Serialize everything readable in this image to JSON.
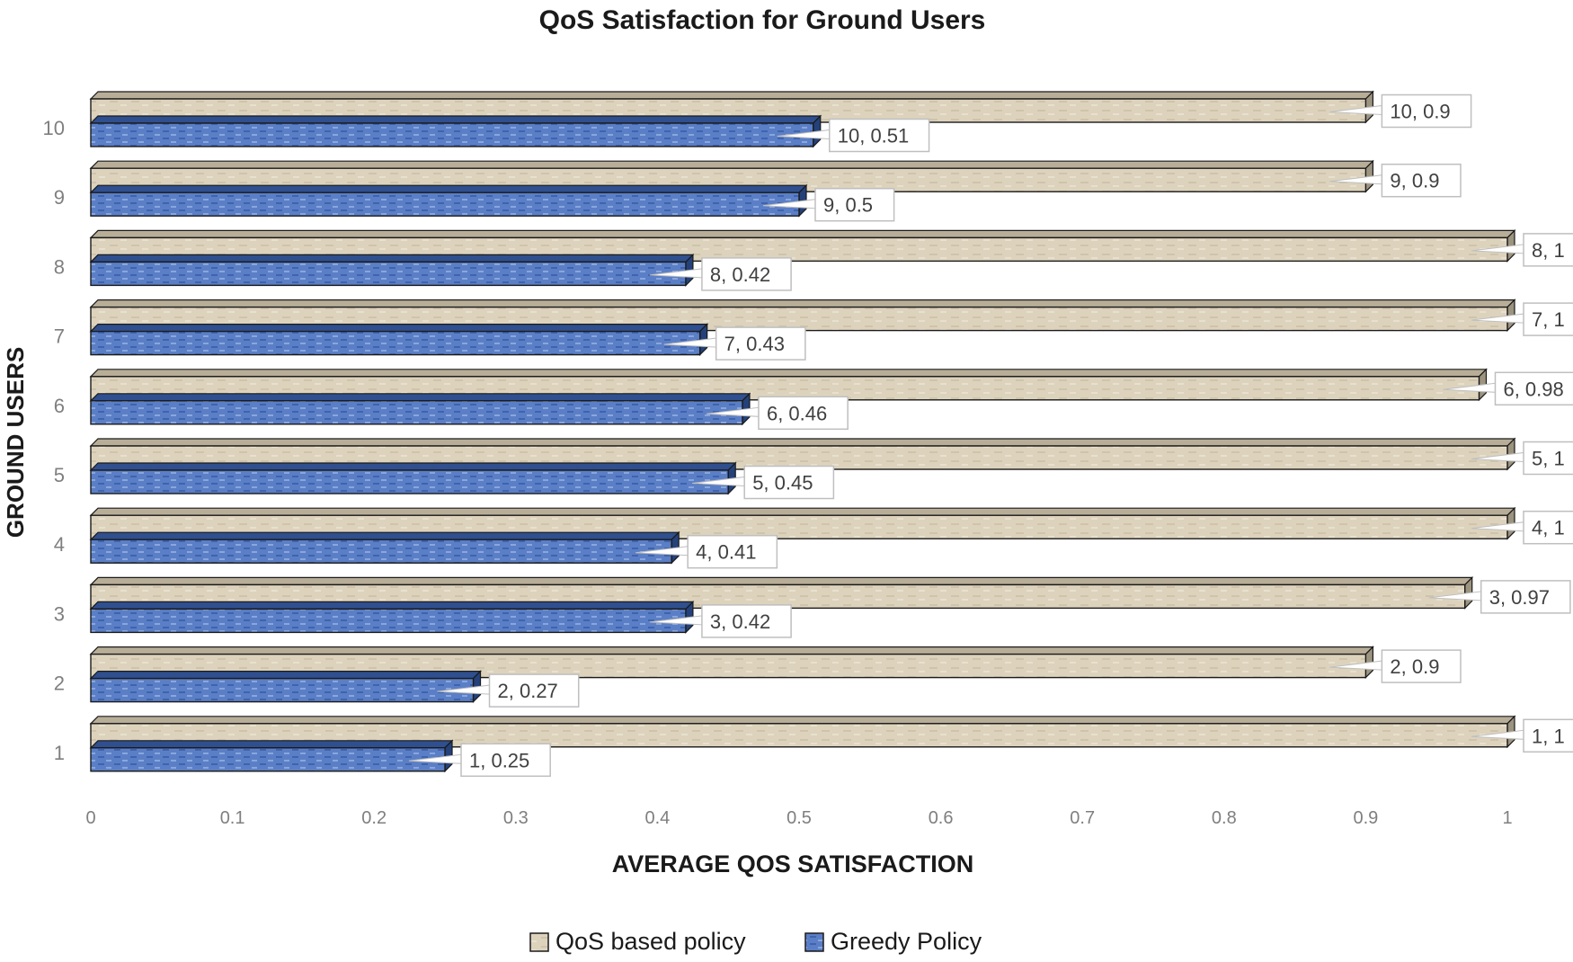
{
  "chart_data": {
    "type": "bar",
    "orientation": "horizontal",
    "title": "QoS Satisfaction  for Ground Users",
    "xlabel": "AVERAGE QOS  SATISFACTION",
    "ylabel": "GROUND USERS",
    "xlim": [
      0,
      1
    ],
    "x_ticks": [
      "0",
      "0.1",
      "0.2",
      "0.3",
      "0.4",
      "0.5",
      "0.6",
      "0.7",
      "0.8",
      "0.9",
      "1"
    ],
    "categories": [
      "1",
      "2",
      "3",
      "4",
      "5",
      "6",
      "7",
      "8",
      "9",
      "10"
    ],
    "series": [
      {
        "name": "QoS based policy",
        "color": "#ddd3bd",
        "values": [
          1,
          0.9,
          0.97,
          1,
          1,
          0.98,
          1,
          1,
          0.9,
          0.9
        ],
        "labels": [
          "1, 1",
          "2, 0.9",
          "3, 0.97",
          "4, 1",
          "5, 1",
          "6, 0.98",
          "7, 1",
          "8, 1",
          "9, 0.9",
          "10, 0.9"
        ]
      },
      {
        "name": "Greedy Policy",
        "color": "#5b7fc6",
        "values": [
          0.25,
          0.27,
          0.42,
          0.41,
          0.45,
          0.46,
          0.43,
          0.42,
          0.5,
          0.51
        ],
        "labels": [
          "1, 0.25",
          "2, 0.27",
          "3, 0.42",
          "4, 0.41",
          "5, 0.45",
          "6, 0.46",
          "7, 0.43",
          "8, 0.42",
          "9, 0.5",
          "10, 0.51"
        ]
      }
    ],
    "legend": "bottom",
    "grid": false
  }
}
